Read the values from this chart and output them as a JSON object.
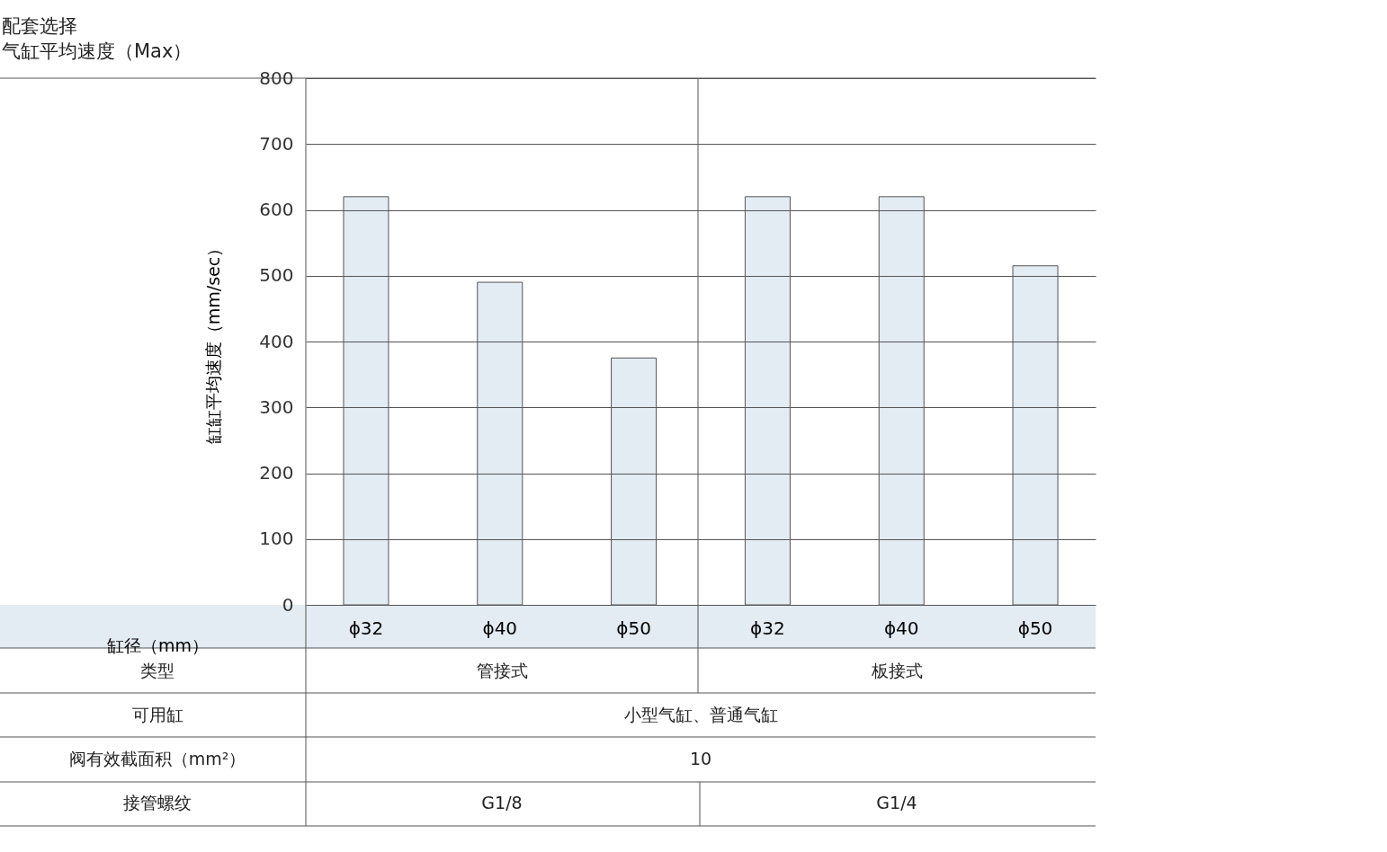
{
  "chart_data": {
    "type": "bar",
    "title": "配套选择",
    "subtitle": "气缸平均速度（Max）",
    "ylabel": "缸缸平均速度（mm/sec）",
    "xlabel": "缸径（mm）",
    "categories": [
      "ϕ32",
      "ϕ40",
      "ϕ50",
      "ϕ32",
      "ϕ40",
      "ϕ50"
    ],
    "values": [
      620,
      490,
      375,
      620,
      620,
      515
    ],
    "color": "#e3ebf3",
    "ylim": [
      0,
      800
    ],
    "yticks": [
      0,
      100,
      200,
      300,
      400,
      500,
      600,
      700,
      800
    ],
    "grid": "y",
    "annotations": [
      "类型",
      "管接式",
      "板接式",
      "可用缸",
      "小型气缸、普通气缸",
      "阀有效截面积（mm²）",
      "10",
      "接管螺纹",
      "G1/8",
      "G1/4"
    ]
  }
}
